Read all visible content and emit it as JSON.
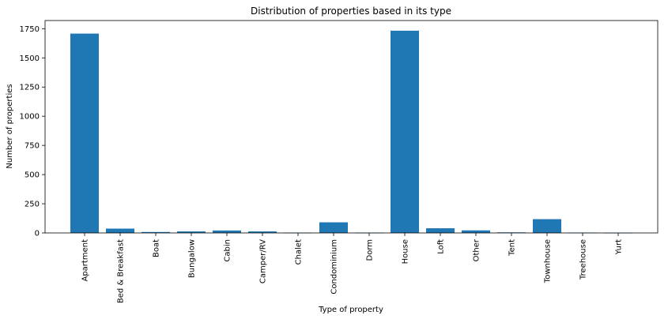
{
  "chart_data": {
    "type": "bar",
    "title": "Distribution of properties based in its type",
    "xlabel": "Type of property",
    "ylabel": "Number of properties",
    "categories": [
      "Apartment",
      "Bed & Breakfast",
      "Boat",
      "Bungalow",
      "Cabin",
      "Camper/RV",
      "Chalet",
      "Condominium",
      "Dorm",
      "House",
      "Loft",
      "Other",
      "Tent",
      "Townhouse",
      "Treehouse",
      "Yurt"
    ],
    "values": [
      1708,
      37,
      8,
      13,
      21,
      13,
      2,
      91,
      2,
      1733,
      40,
      22,
      5,
      118,
      3,
      1
    ],
    "ylim": [
      0,
      1820
    ],
    "yticks": [
      0,
      250,
      500,
      750,
      1000,
      1250,
      1500,
      1750
    ],
    "bar_color": "#1f77b4",
    "grid": false
  }
}
